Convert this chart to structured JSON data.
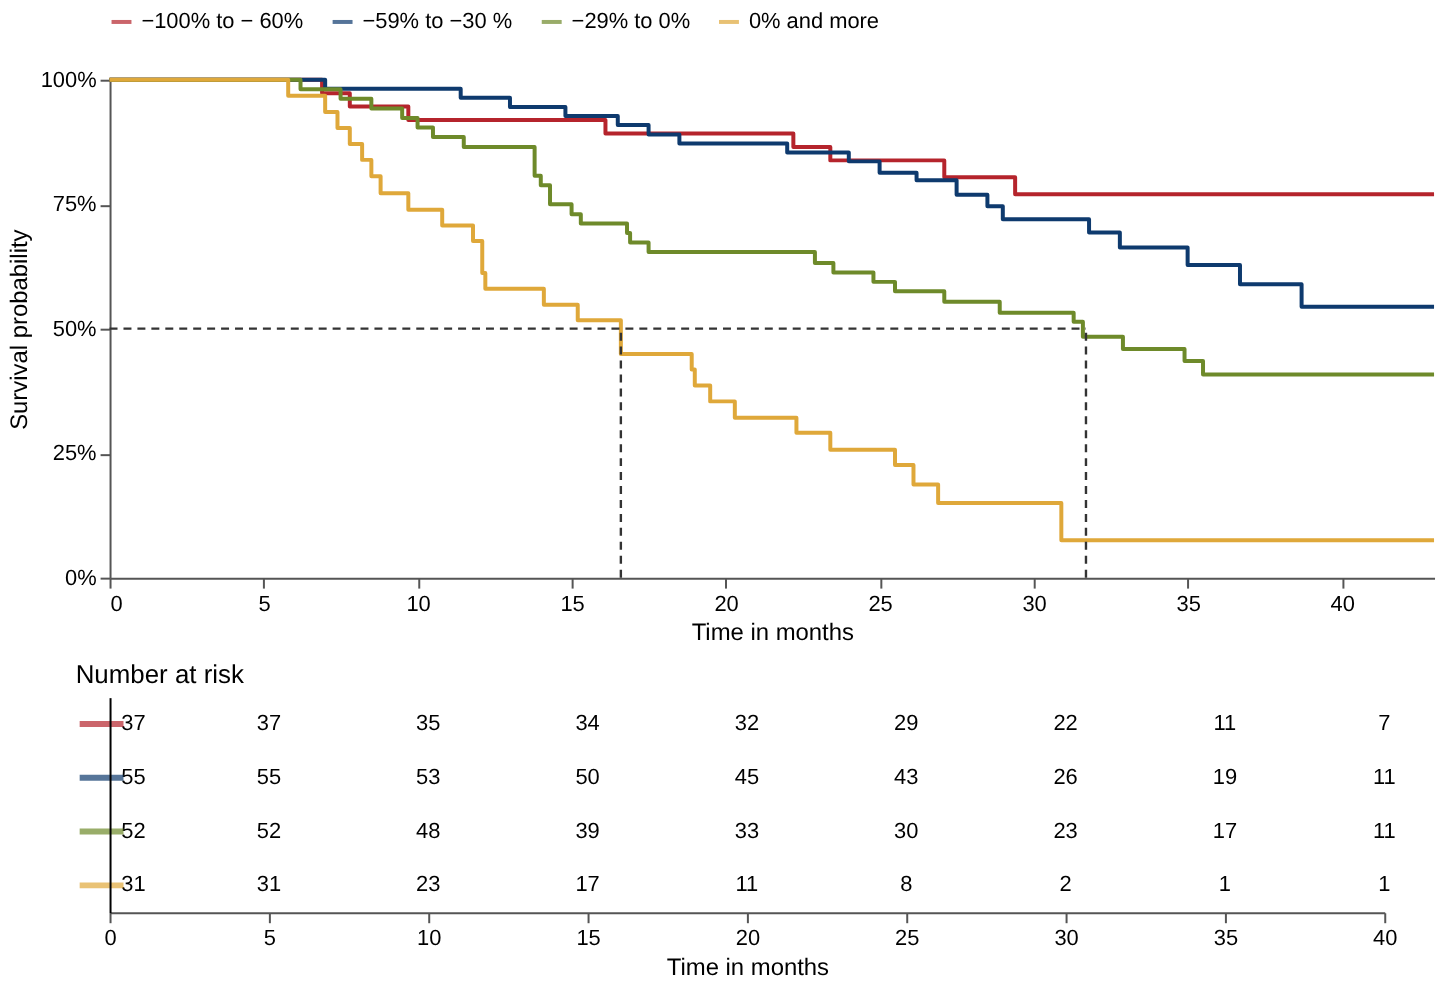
{
  "chart_data": [
    {
      "type": "step",
      "xlabel": "Time in months",
      "ylabel": "Survival probability",
      "legend": "top",
      "grid": false,
      "xlim": [
        0,
        43
      ],
      "xticks": [
        0,
        5,
        10,
        15,
        20,
        25,
        30,
        35,
        40
      ],
      "ylim": [
        0,
        1
      ],
      "yticks": [
        {
          "value": 0,
          "label": "0%"
        },
        {
          "value": 0.25,
          "label": "25%"
        },
        {
          "value": 0.5,
          "label": "50%"
        },
        {
          "value": 0.75,
          "label": "75%"
        },
        {
          "value": 1,
          "label": "100%"
        }
      ],
      "ref_lines": [
        {
          "axis": "y",
          "value": 0.5,
          "line_style": "dashed",
          "color": "#333333"
        },
        {
          "axis": "x",
          "value": 16.6,
          "line_style": "dashed",
          "color": "#333333"
        },
        {
          "axis": "x",
          "value": 31.7,
          "line_style": "dashed",
          "color": "#333333"
        }
      ],
      "series": [
        {
          "name": "−100% to − 60%",
          "color": "#b5242c",
          "x": [
            0,
            6.9,
            7.8,
            9.7,
            16.1,
            22.2,
            23.4,
            27.1,
            29.4,
            43
          ],
          "values": [
            1,
            0.973,
            0.946,
            0.919,
            0.892,
            0.865,
            0.838,
            0.804,
            0.77,
            0.77
          ]
        },
        {
          "name": "−59% to −30 %",
          "color": "#0e3a6e",
          "x": [
            0,
            7.0,
            11.4,
            13.0,
            14.8,
            16.5,
            17.5,
            18.5,
            22.0,
            24.0,
            25.0,
            26.2,
            27.5,
            28.5,
            29.0,
            31.8,
            32.8,
            35.0,
            36.7,
            38.7,
            43
          ],
          "values": [
            1,
            0.982,
            0.964,
            0.945,
            0.927,
            0.909,
            0.89,
            0.872,
            0.854,
            0.836,
            0.813,
            0.798,
            0.769,
            0.746,
            0.72,
            0.693,
            0.663,
            0.628,
            0.589,
            0.544,
            0.544
          ]
        },
        {
          "name": "−29% to 0%",
          "color": "#6e8a2a",
          "x": [
            0,
            6.2,
            7.5,
            8.5,
            9.5,
            10.0,
            10.5,
            11.5,
            13.8,
            14.0,
            14.3,
            15.0,
            15.3,
            16.8,
            16.9,
            17.5,
            22.9,
            23.5,
            24.8,
            25.5,
            27.1,
            28.9,
            31.3,
            31.6,
            32.9,
            34.9,
            35.5,
            43
          ],
          "values": [
            1,
            0.981,
            0.962,
            0.942,
            0.923,
            0.904,
            0.885,
            0.865,
            0.807,
            0.788,
            0.75,
            0.73,
            0.711,
            0.692,
            0.673,
            0.654,
            0.632,
            0.613,
            0.594,
            0.575,
            0.554,
            0.532,
            0.514,
            0.484,
            0.459,
            0.435,
            0.408,
            0.408
          ]
        },
        {
          "name": "0% and more",
          "color": "#dfa83a",
          "x": [
            0,
            5.8,
            7.0,
            7.4,
            7.8,
            8.2,
            8.5,
            8.8,
            9.7,
            10.8,
            11.8,
            12.1,
            12.2,
            14.1,
            15.2,
            16.6,
            18.9,
            19.0,
            19.5,
            20.3,
            22.3,
            23.4,
            25.5,
            26.1,
            26.9,
            30.9,
            43
          ],
          "values": [
            1,
            0.968,
            0.935,
            0.903,
            0.871,
            0.839,
            0.806,
            0.772,
            0.739,
            0.707,
            0.676,
            0.612,
            0.58,
            0.548,
            0.517,
            0.449,
            0.418,
            0.386,
            0.354,
            0.321,
            0.291,
            0.257,
            0.226,
            0.187,
            0.15,
            0.075,
            0.075
          ]
        }
      ]
    },
    {
      "type": "heatmap",
      "title": "Number at risk",
      "xlabel": "Time in months",
      "data_labels": true,
      "categories": [
        "0",
        "5",
        "10",
        "15",
        "20",
        "25",
        "30",
        "35",
        "40"
      ],
      "y_categories": [
        null,
        null,
        null,
        null
      ],
      "colors": [
        "#b5242c",
        "#0e3a6e",
        "#6e8a2a",
        "#dfa83a"
      ],
      "cells": [
        [
          37,
          37,
          35,
          34,
          32,
          29,
          22,
          11,
          7
        ],
        [
          55,
          55,
          53,
          50,
          45,
          43,
          26,
          19,
          11
        ],
        [
          52,
          52,
          48,
          39,
          33,
          30,
          23,
          17,
          11
        ],
        [
          31,
          31,
          23,
          17,
          11,
          8,
          2,
          1,
          1
        ]
      ]
    }
  ]
}
